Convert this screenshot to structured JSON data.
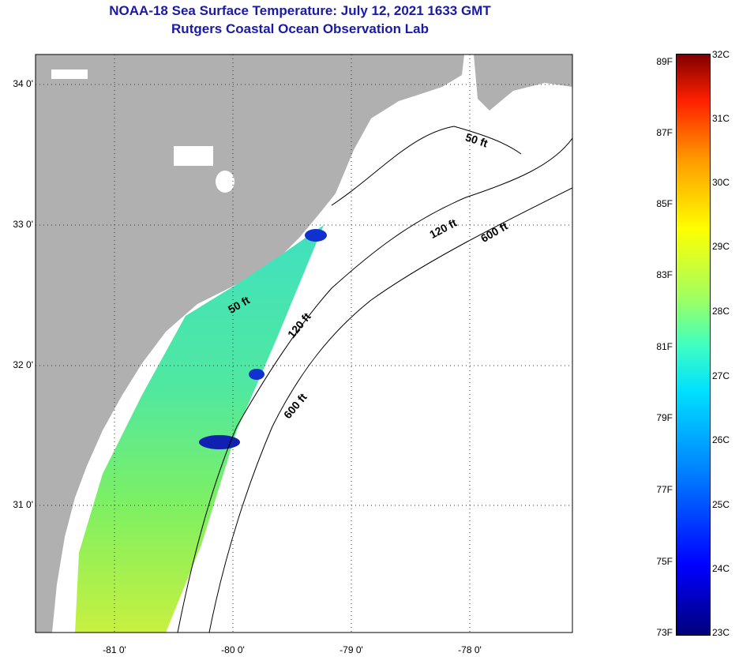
{
  "title": {
    "line1": "NOAA-18 Sea Surface Temperature:  July 12, 2021 1633 GMT",
    "line2": "Rutgers Coastal Ocean Observation Lab"
  },
  "axes": {
    "lat_labels": [
      "34 0'",
      "33 0'",
      "32 0'",
      "31 0'"
    ],
    "lon_labels": [
      "-81 0'",
      "-80 0'",
      "-79 0'",
      "-78 0'"
    ]
  },
  "depth_contours": [
    "50 ft",
    "120 ft",
    "600 ft",
    "50 ft",
    "120 ft",
    "600 ft"
  ],
  "colorbar": {
    "fahrenheit": [
      "89F",
      "87F",
      "85F",
      "83F",
      "81F",
      "79F",
      "77F",
      "75F",
      "73F"
    ],
    "celsius": [
      "32C",
      "31C",
      "30C",
      "29C",
      "28C",
      "27C",
      "26C",
      "25C",
      "24C",
      "23C"
    ]
  },
  "colors": {
    "land": "#b0b0b0",
    "title": "#1a1aa8",
    "water": "#ffffff"
  }
}
